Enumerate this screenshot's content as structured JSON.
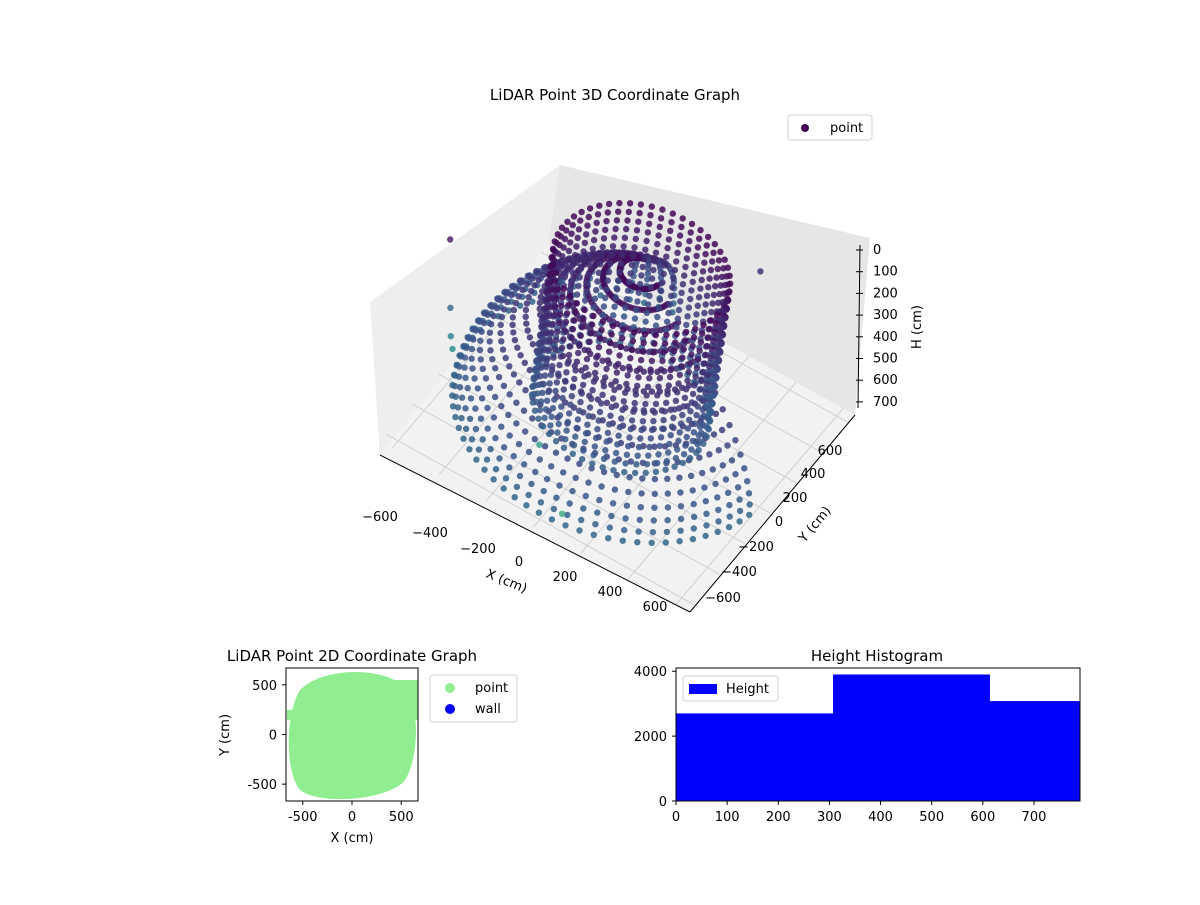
{
  "chart_data": [
    {
      "type": "scatter",
      "title": "LiDAR Point 3D Coordinate Graph",
      "xlabel": "X (cm)",
      "ylabel": "Y (cm)",
      "zlabel": "H (cm)",
      "xlim": [
        -650,
        650
      ],
      "ylim": [
        -650,
        650
      ],
      "zlim": [
        0,
        780
      ],
      "z_inverted": true,
      "x_ticks": [
        "−600",
        "−400",
        "−200",
        "0",
        "200",
        "400",
        "600"
      ],
      "y_ticks": [
        "−600",
        "−400",
        "−200",
        "0",
        "200",
        "400",
        "600"
      ],
      "z_ticks": [
        "0",
        "100",
        "200",
        "300",
        "400",
        "500",
        "600",
        "700"
      ],
      "grid": true,
      "legend": {
        "placement": "top-right",
        "entries": [
          {
            "name": "point",
            "color": "#440154"
          }
        ]
      },
      "colormap": "viridis",
      "series": [
        {
          "name": "point",
          "shape": "ring-and-arc",
          "outer_radius_cm": 620,
          "inner_radius_cm": 330,
          "height_range_cm": [
            0,
            750
          ],
          "outliers": [
            {
              "x": -640,
              "y": -300,
              "h": 80
            },
            {
              "x": -620,
              "y": -250,
              "h": 420
            },
            {
              "x": -610,
              "y": -230,
              "h": 560
            },
            {
              "x": -600,
              "y": -220,
              "h": 620
            },
            {
              "x": -350,
              "y": 100,
              "h": 380
            },
            {
              "x": -150,
              "y": -350,
              "h": 700
            },
            {
              "x": 50,
              "y": -520,
              "h": 780
            },
            {
              "x": 300,
              "y": 400,
              "h": 150
            }
          ]
        }
      ]
    },
    {
      "type": "scatter",
      "title": "LiDAR Point 2D Coordinate Graph",
      "xlabel": "X (cm)",
      "ylabel": "Y (cm)",
      "xlim": [
        -670,
        670
      ],
      "ylim": [
        -670,
        670
      ],
      "x_ticks": [
        -500,
        0,
        500
      ],
      "y_ticks": [
        -500,
        0,
        500
      ],
      "legend": {
        "placement": "outside-right",
        "entries": [
          {
            "name": "point",
            "color": "#90ee90"
          },
          {
            "name": "wall",
            "color": "#0000ff"
          }
        ]
      },
      "series": [
        {
          "name": "point",
          "color": "#90ee90",
          "region": "disk",
          "radius_cm": 650
        },
        {
          "name": "wall",
          "color": "#0000ff",
          "points": []
        }
      ]
    },
    {
      "type": "bar",
      "title": "Height Histogram",
      "xlim": [
        0,
        790
      ],
      "ylim": [
        0,
        4100
      ],
      "x_ticks": [
        0,
        100,
        200,
        300,
        400,
        500,
        600,
        700
      ],
      "y_ticks": [
        0,
        2000,
        4000
      ],
      "legend": {
        "placement": "top-left",
        "entries": [
          {
            "name": "Height",
            "color": "#0000ff"
          }
        ]
      },
      "bins": [
        {
          "start": 0,
          "end": 307,
          "count": 2700
        },
        {
          "start": 307,
          "end": 614,
          "count": 3900
        },
        {
          "start": 614,
          "end": 790,
          "count": 3080
        }
      ],
      "color": "#0000ff"
    }
  ]
}
